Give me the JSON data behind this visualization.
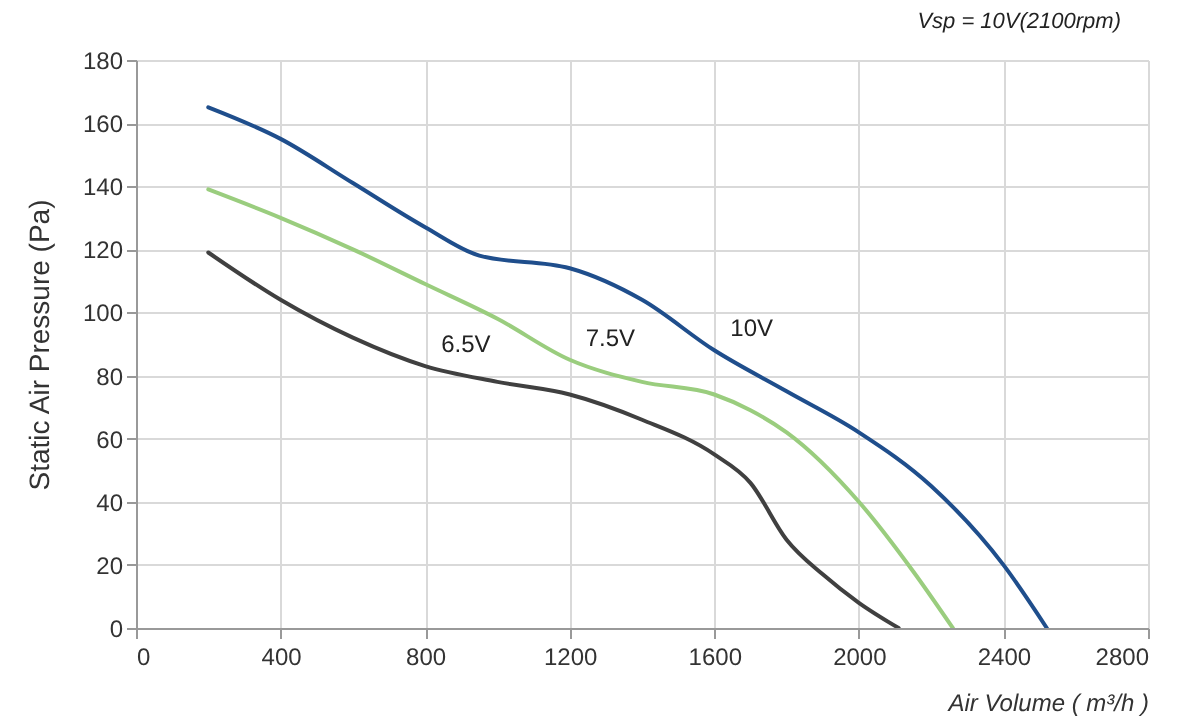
{
  "chart_data": {
    "type": "line",
    "title": "Vsp = 10V(2100rpm)",
    "xlabel": "Air Volume ( m³/h )",
    "ylabel": "Static Air Pressure  (Pa)",
    "x": [
      200,
      400,
      600,
      800,
      950,
      1200,
      1400,
      1600,
      1800,
      2000,
      2200,
      2400,
      2520
    ],
    "series": [
      {
        "color": "#1f4e8c",
        "values": [
          165,
          155,
          141,
          127,
          118,
          114,
          104,
          88,
          75,
          62,
          45,
          20,
          0
        ]
      },
      {
        "color": "#9acd7e",
        "x": [
          200,
          400,
          600,
          800,
          1000,
          1200,
          1400,
          1600,
          1700,
          1800,
          2000,
          2150,
          2260
        ],
        "values": [
          139,
          130,
          120,
          109,
          98,
          85,
          78,
          74,
          69,
          62,
          40,
          18,
          0
        ]
      },
      {
        "color": "#404040",
        "x": [
          200,
          400,
          600,
          800,
          1000,
          1200,
          1400,
          1600,
          1700,
          1800,
          1900,
          2000,
          2110
        ],
        "values": [
          119,
          104,
          92,
          83,
          78,
          74,
          66,
          55,
          46,
          28,
          17,
          8,
          0
        ]
      }
    ],
    "annotations": [
      {
        "text": "6.5V",
        "x": 800,
        "y": 83
      },
      {
        "text": "7.5V",
        "x": 1200,
        "y": 85
      },
      {
        "text": "10V",
        "x": 1600,
        "y": 88
      }
    ],
    "xlim": [
      0,
      2800
    ],
    "xticks": [
      0,
      400,
      800,
      1200,
      1600,
      2000,
      2400,
      2800
    ],
    "ylim": [
      0,
      180
    ],
    "yticks": [
      0,
      20,
      40,
      60,
      80,
      100,
      120,
      140,
      160,
      180
    ],
    "grid": true,
    "marker": "none",
    "line_style": "solid"
  }
}
